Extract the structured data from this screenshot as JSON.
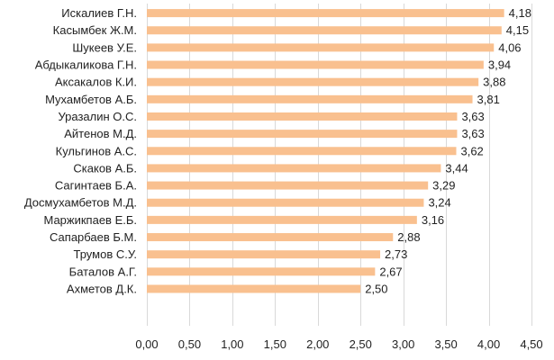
{
  "chart_data": {
    "type": "bar",
    "orientation": "horizontal",
    "categories": [
      "Искалиев Г.Н.",
      "Касымбек Ж.М.",
      "Шукеев У.Е.",
      "Абдыкаликова Г.Н.",
      "Аксакалов К.И.",
      "Мухамбетов А.Б.",
      "Уразалин О.С.",
      "Айтенов М.Д.",
      "Кульгинов А.С.",
      "Скаков А.Б.",
      "Сагинтаев Б.А.",
      "Досмухамбетов М.Д.",
      "Маржикпаев Е.Б.",
      "Сапарбаев Б.М.",
      "Трумов С.У.",
      "Баталов А.Г.",
      "Ахметов Д.К."
    ],
    "values": [
      4.18,
      4.15,
      4.06,
      3.94,
      3.88,
      3.81,
      3.63,
      3.63,
      3.62,
      3.44,
      3.29,
      3.24,
      3.16,
      2.88,
      2.73,
      2.67,
      2.5
    ],
    "value_labels": [
      "4,18",
      "4,15",
      "4,06",
      "3,94",
      "3,88",
      "3,81",
      "3,63",
      "3,63",
      "3,62",
      "3,44",
      "3,29",
      "3,24",
      "3,16",
      "2,88",
      "2,73",
      "2,67",
      "2,50"
    ],
    "ticks": [
      0,
      0.5,
      1.0,
      1.5,
      2.0,
      2.5,
      3.0,
      3.5,
      4.0,
      4.5
    ],
    "tick_labels": [
      "0,00",
      "0,50",
      "1,00",
      "1,50",
      "2,00",
      "2,50",
      "3,00",
      "3,50",
      "4,00",
      "4,50"
    ],
    "xlim": [
      0,
      4.5
    ],
    "title": "",
    "xlabel": "",
    "ylabel": "",
    "grid": true,
    "legend": false,
    "colors": {
      "bar": "#F9C08F",
      "grid": "#D9D9D9",
      "text": "#222222"
    }
  }
}
